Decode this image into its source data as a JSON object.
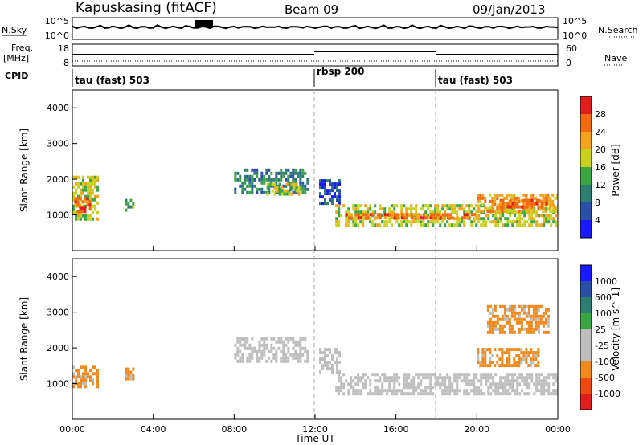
{
  "header": {
    "station": "Kapuskasing (fitACF)",
    "beam": "Beam 09",
    "date": "09/Jan/2013"
  },
  "strip_labels": {
    "nsky": "N.Sky",
    "nsearch": "N.Search",
    "freq": "Freq.",
    "freq_unit": "[MHz]",
    "nave": "Nave",
    "cpid": "CPID",
    "nsky_ticks": [
      "10^5",
      "10^0"
    ],
    "nsearch_ticks": [
      "10^5",
      "10^0"
    ],
    "freq_ticks": [
      "18",
      "8"
    ],
    "nave_ticks": [
      "60",
      "0"
    ]
  },
  "cpid_segments": [
    {
      "label": "tau (fast) 503",
      "start_hour": 0
    },
    {
      "label": "rbsp 200",
      "start_hour": 12
    },
    {
      "label": "tau (fast) 503",
      "start_hour": 18
    }
  ],
  "axes": {
    "xlabel": "Time UT",
    "xticks": [
      "00:00",
      "04:00",
      "08:00",
      "12:00",
      "16:00",
      "20:00",
      "00:00"
    ],
    "ylabel": "Slant Range [km]",
    "yticks": [
      "1000",
      "2000",
      "3000",
      "4000"
    ]
  },
  "colors": {
    "power": [
      "#1a1aff",
      "#2a4fa8",
      "#2e7d6e",
      "#3aa642",
      "#c8d21e",
      "#f5a21e",
      "#f06a14",
      "#e01e1e"
    ],
    "velocity": [
      "#e01e1e",
      "#f04a14",
      "#f08a1e",
      "#bebebe",
      "#bebebe",
      "#3aa642",
      "#2e7d6e",
      "#2a4fa8",
      "#1a1aff"
    ]
  },
  "chart_data": [
    {
      "type": "heatmap",
      "name": "power",
      "colorbar_label": "Power [dB]",
      "colorbar_ticks": [
        "4",
        "8",
        "12",
        "16",
        "20",
        "24",
        "28"
      ],
      "ylim": [
        0,
        4500
      ],
      "xlim_hours": [
        0,
        24
      ],
      "bands": [
        {
          "t0": 0.0,
          "t1": 1.2,
          "r0": 900,
          "r1": 2100,
          "level": 4
        },
        {
          "t0": 0.1,
          "t1": 0.9,
          "r0": 1100,
          "r1": 1500,
          "level": 6
        },
        {
          "t0": 2.6,
          "t1": 3.0,
          "r0": 1100,
          "r1": 1450,
          "level": 3
        },
        {
          "t0": 8.0,
          "t1": 11.6,
          "r0": 1600,
          "r1": 2300,
          "level": 2
        },
        {
          "t0": 9.6,
          "t1": 11.2,
          "r0": 1600,
          "r1": 1900,
          "level": 4
        },
        {
          "t0": 12.2,
          "t1": 13.2,
          "r0": 1300,
          "r1": 2000,
          "level": 1
        },
        {
          "t0": 13.0,
          "t1": 24.0,
          "r0": 700,
          "r1": 1300,
          "level": 4
        },
        {
          "t0": 13.5,
          "t1": 20.0,
          "r0": 900,
          "r1": 1050,
          "level": 6
        },
        {
          "t0": 20.0,
          "t1": 24.0,
          "r0": 1100,
          "r1": 1600,
          "level": 5
        },
        {
          "t0": 21.0,
          "t1": 23.5,
          "r0": 1200,
          "r1": 1450,
          "level": 6
        }
      ]
    },
    {
      "type": "heatmap",
      "name": "velocity",
      "colorbar_label": "Velocity [m s^-1]",
      "colorbar_ticks": [
        "1000",
        "500",
        "100",
        "25",
        "-25",
        "-100",
        "-500",
        "-1000"
      ],
      "ylim": [
        0,
        4500
      ],
      "xlim_hours": [
        0,
        24
      ],
      "bands": [
        {
          "t0": 0.0,
          "t1": 1.2,
          "r0": 900,
          "r1": 1500,
          "level": 2
        },
        {
          "t0": 2.6,
          "t1": 3.0,
          "r0": 1100,
          "r1": 1450,
          "level": 2
        },
        {
          "t0": 8.0,
          "t1": 11.6,
          "r0": 1600,
          "r1": 2300,
          "level": 3
        },
        {
          "t0": 12.2,
          "t1": 13.2,
          "r0": 1300,
          "r1": 2000,
          "level": 3
        },
        {
          "t0": 13.0,
          "t1": 24.0,
          "r0": 700,
          "r1": 1300,
          "level": 3
        },
        {
          "t0": 20.0,
          "t1": 23.0,
          "r0": 1500,
          "r1": 2000,
          "level": 2
        },
        {
          "t0": 20.5,
          "t1": 23.5,
          "r0": 2400,
          "r1": 3200,
          "level": 2
        }
      ]
    }
  ]
}
